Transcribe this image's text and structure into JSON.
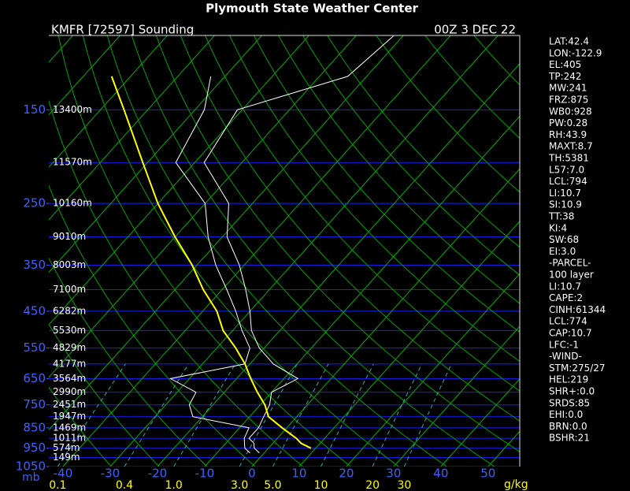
{
  "chart_data": {
    "type": "skewt",
    "title": "Plymouth State Weather Center",
    "subtitle": "KMFR [72597] Sounding",
    "date": "00Z  3 DEC 22",
    "y_label": "mb",
    "ylim": [
      1050,
      100
    ],
    "yticks": [
      150,
      250,
      350,
      450,
      550,
      650,
      750,
      850,
      950,
      1050
    ],
    "isobars": [
      1050,
      1000,
      950,
      900,
      850,
      800,
      750,
      700,
      650,
      600,
      550,
      500,
      450,
      400,
      350,
      300,
      250,
      200,
      150,
      100
    ],
    "xlim": [
      -43,
      56.7
    ],
    "xticks": [
      -40,
      -30,
      -20,
      -10,
      0,
      10,
      20,
      30,
      40,
      50
    ],
    "isotherms": [
      -130,
      -120,
      -110,
      -100,
      -90,
      -80,
      -70,
      -60,
      -50,
      -40,
      -30,
      -20,
      -10,
      0,
      10,
      20,
      30,
      40,
      50
    ],
    "dry_adiabats": [
      240,
      250,
      260,
      270,
      280,
      290,
      300,
      310,
      320,
      330,
      340,
      350,
      360,
      370,
      380,
      390,
      400,
      420,
      440,
      460
    ],
    "mixing_ratio_label": "g/kg",
    "mixing_ratio_ticks": [
      0.1,
      0.4,
      {
        "value": 1,
        "label": "1.0"
      },
      {
        "value": 3,
        "label": "3.0"
      },
      {
        "value": 5,
        "label": "5.0"
      },
      10,
      20,
      30
    ],
    "pressure": [
      975,
      950,
      925,
      900,
      850,
      800,
      750,
      700,
      650,
      600,
      550,
      500,
      450,
      400,
      350,
      300,
      250,
      200,
      150,
      125,
      100
    ],
    "series": [
      {
        "color": "#ffffff",
        "values": [
          -1,
          -3,
          -4,
          -6,
          -6,
          -7,
          -8,
          -10,
          -7,
          -15,
          -21,
          -26,
          -30,
          -35,
          -41,
          -49,
          -55,
          -68,
          -71,
          -54,
          -52
        ]
      },
      {
        "color": "#ffffff",
        "values": [
          -3,
          -5,
          -6,
          -7,
          -8,
          -22,
          -25,
          -26,
          -34,
          -21,
          -23,
          -28,
          -33,
          -39,
          -46,
          -53,
          -60,
          -74,
          -78,
          -83,
          null
        ]
      },
      {
        "color": "#ffff00",
        "values": [
          null,
          9,
          6,
          4,
          -1,
          -6,
          -9,
          -13,
          -17,
          -21,
          -26,
          -32,
          -37,
          -44,
          -51,
          -60,
          -70,
          -81,
          -95,
          -104,
          null
        ]
      }
    ],
    "heights": [
      {
        "pressure": 150,
        "label": "13400m"
      },
      {
        "pressure": 200,
        "label": "11570m"
      },
      {
        "pressure": 250,
        "label": "10160m"
      },
      {
        "pressure": 300,
        "label": "9010m"
      },
      {
        "pressure": 350,
        "label": "8003m"
      },
      {
        "pressure": 400,
        "label": "7100m"
      },
      {
        "pressure": 450,
        "label": "6282m"
      },
      {
        "pressure": 500,
        "label": "5530m"
      },
      {
        "pressure": 550,
        "label": "4829m"
      },
      {
        "pressure": 600,
        "label": "4177m"
      },
      {
        "pressure": 650,
        "label": "3564m"
      },
      {
        "pressure": 700,
        "label": "2990m"
      },
      {
        "pressure": 750,
        "label": "2451m"
      },
      {
        "pressure": 800,
        "label": "1947m"
      },
      {
        "pressure": 850,
        "label": "1469m"
      },
      {
        "pressure": 900,
        "label": "1011m"
      },
      {
        "pressure": 950,
        "label": "574m"
      },
      {
        "pressure": 1000,
        "label": "149m"
      }
    ],
    "indices": [
      "LAT:42.4",
      "LON:-122.9",
      "EL:405",
      "TP:242",
      "MW:241",
      "FRZ:875",
      "WB0:928",
      "PW:0.28",
      "RH:43.9",
      "MAXT:8.7",
      "TH:5381",
      "L57:7.0",
      "LCL:794",
      "LI:10.7",
      "SI:10.9",
      "TT:38",
      "KI:4",
      "SW:68",
      "EI:3.0",
      "-PARCEL-",
      "100 layer",
      "LI:10.7",
      "CAPE:2",
      "CINH:61344",
      "LCL:774",
      "CAP:10.7",
      "LFC:-1",
      "-WIND-",
      "STM:275/27",
      "HEL:219",
      "SHR+:0.0",
      "SRDS:85",
      "EHI:0.0",
      "BRN:0.0",
      "BSHR:21"
    ]
  }
}
